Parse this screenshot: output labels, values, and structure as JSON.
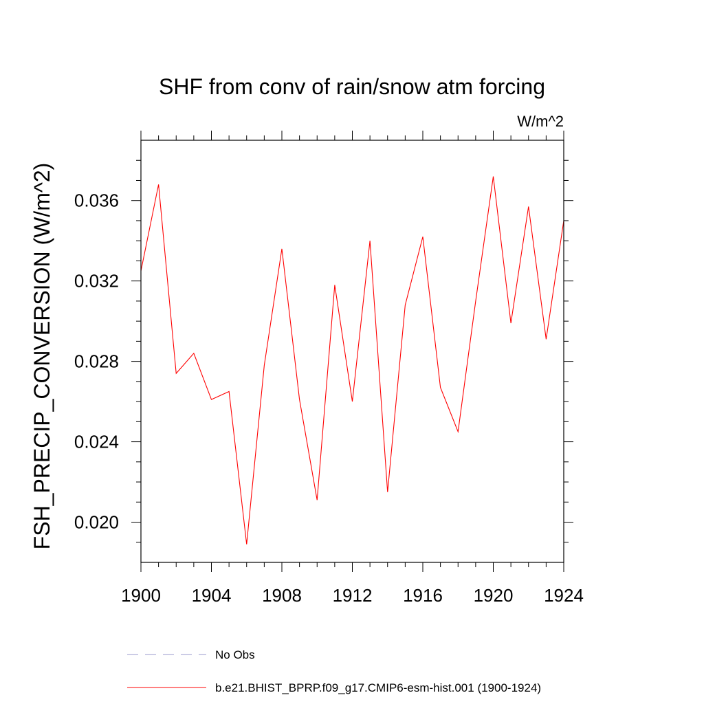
{
  "chart_data": {
    "type": "line",
    "title": "SHF from conv of rain/snow atm forcing",
    "units": "W/m^2",
    "xlabel": "",
    "ylabel": "FSH_PRECIP_CONVERSION  (W/m^2)",
    "xlim": [
      1900,
      1924
    ],
    "ylim": [
      0.018,
      0.039
    ],
    "x_ticks": [
      "1900",
      "1904",
      "1908",
      "1912",
      "1916",
      "1920",
      "1924"
    ],
    "y_ticks": [
      "0.020",
      "0.024",
      "0.028",
      "0.032",
      "0.036"
    ],
    "x": [
      1900,
      1901,
      1902,
      1903,
      1904,
      1905,
      1906,
      1907,
      1908,
      1909,
      1910,
      1911,
      1912,
      1913,
      1914,
      1915,
      1916,
      1917,
      1918,
      1919,
      1920,
      1921,
      1922,
      1923,
      1924
    ],
    "series": [
      {
        "name": "b.e21.BHIST_BPRP.f09_g17.CMIP6-esm-hist.001 (1900-1924)",
        "color": "#ff0000",
        "values": [
          0.0325,
          0.0368,
          0.0274,
          0.0284,
          0.0261,
          0.0265,
          0.0189,
          0.0278,
          0.0336,
          0.0261,
          0.0211,
          0.0318,
          0.026,
          0.034,
          0.0215,
          0.0308,
          0.0342,
          0.0267,
          0.0245,
          0.031,
          0.0372,
          0.0299,
          0.0357,
          0.0291,
          0.035
        ]
      }
    ],
    "legend": [
      {
        "label": "No Obs",
        "style": "dashed",
        "color": "#9999cc"
      },
      {
        "label": "b.e21.BHIST_BPRP.f09_g17.CMIP6-esm-hist.001 (1900-1924)",
        "style": "solid",
        "color": "#ff0000"
      }
    ]
  }
}
